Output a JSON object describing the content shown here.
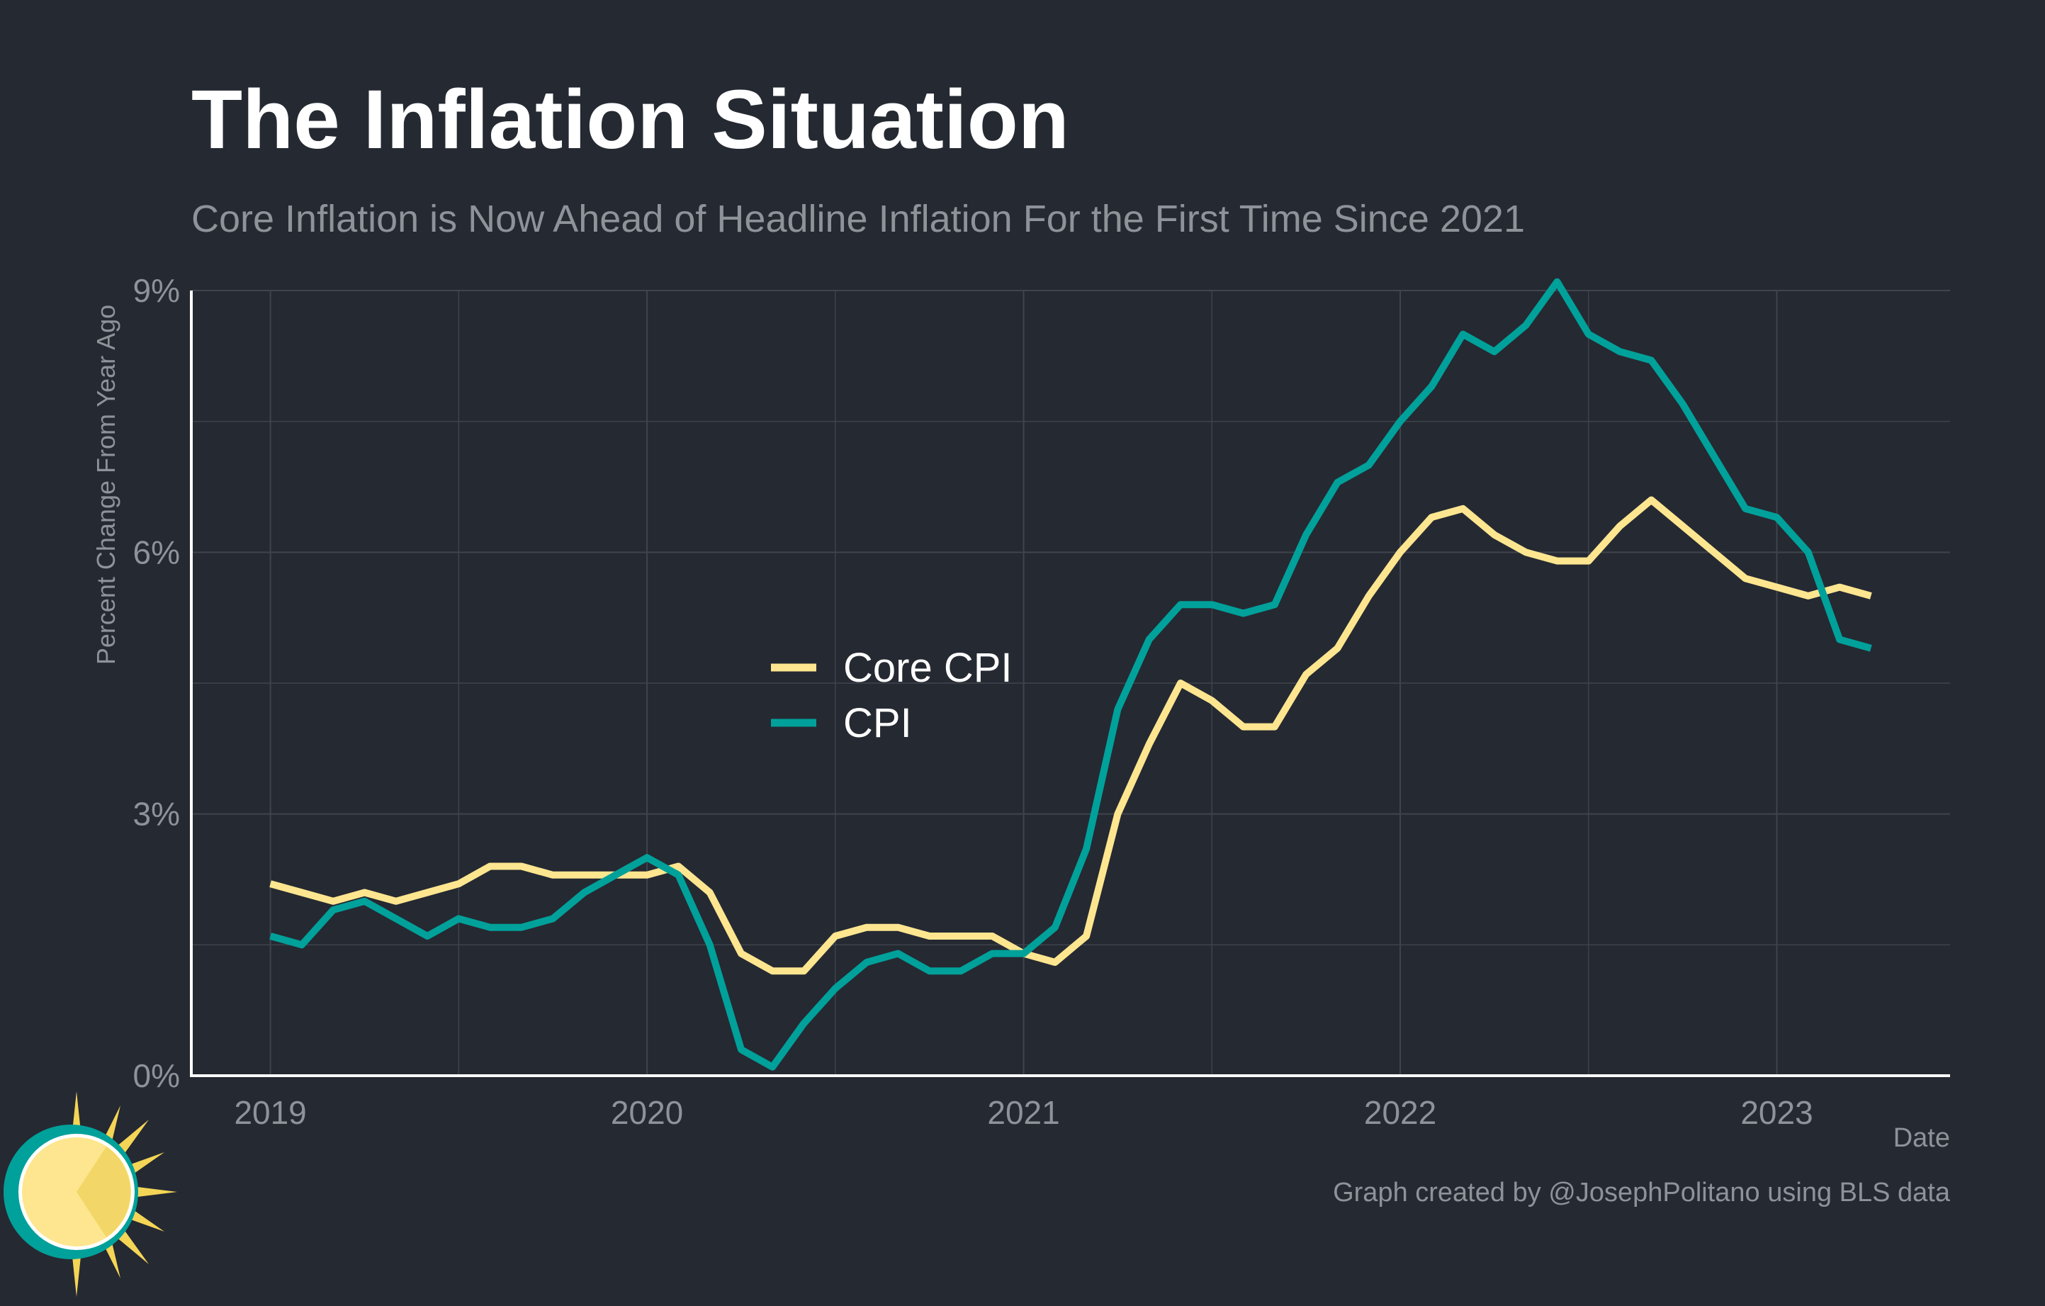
{
  "chart_data": {
    "type": "line",
    "title": "The Inflation Situation",
    "subtitle": "Core Inflation is Now Ahead of Headline Inflation For the First Time Since 2021",
    "xlabel": "Date",
    "ylabel": "Percent Change From Year Ago",
    "caption": "Graph created by @JosephPolitano using BLS data",
    "xlim": [
      2018.79,
      2023.46
    ],
    "ylim": [
      0,
      9
    ],
    "x_ticks": [
      {
        "value": 2019,
        "label": "2019"
      },
      {
        "value": 2020,
        "label": "2020"
      },
      {
        "value": 2021,
        "label": "2021"
      },
      {
        "value": 2022,
        "label": "2022"
      },
      {
        "value": 2023,
        "label": "2023"
      }
    ],
    "y_ticks": [
      {
        "value": 0,
        "label": "0%"
      },
      {
        "value": 3,
        "label": "3%"
      },
      {
        "value": 6,
        "label": "6%"
      },
      {
        "value": 9,
        "label": "9%"
      }
    ],
    "x_start": "2019-01",
    "x_step_months": 1,
    "legend": {
      "position": "center-left"
    },
    "series": [
      {
        "name": "Core CPI",
        "color": "#fde68f",
        "values": [
          2.2,
          2.1,
          2.0,
          2.1,
          2.0,
          2.1,
          2.2,
          2.4,
          2.4,
          2.3,
          2.3,
          2.3,
          2.3,
          2.4,
          2.1,
          1.4,
          1.2,
          1.2,
          1.6,
          1.7,
          1.7,
          1.6,
          1.6,
          1.6,
          1.4,
          1.3,
          1.6,
          3.0,
          3.8,
          4.5,
          4.3,
          4.0,
          4.0,
          4.6,
          4.9,
          5.5,
          6.0,
          6.4,
          6.5,
          6.2,
          6.0,
          5.9,
          5.9,
          6.3,
          6.6,
          6.3,
          6.0,
          5.7,
          5.6,
          5.5,
          5.6,
          5.5
        ]
      },
      {
        "name": "CPI",
        "color": "#00a19a",
        "values": [
          1.6,
          1.5,
          1.9,
          2.0,
          1.8,
          1.6,
          1.8,
          1.7,
          1.7,
          1.8,
          2.1,
          2.3,
          2.5,
          2.3,
          1.5,
          0.3,
          0.1,
          0.6,
          1.0,
          1.3,
          1.4,
          1.2,
          1.2,
          1.4,
          1.4,
          1.7,
          2.6,
          4.2,
          5.0,
          5.4,
          5.4,
          5.3,
          5.4,
          6.2,
          6.8,
          7.0,
          7.5,
          7.9,
          8.5,
          8.3,
          8.6,
          9.1,
          8.5,
          8.3,
          8.2,
          7.7,
          7.1,
          6.5,
          6.4,
          6.0,
          5.0,
          4.9
        ]
      }
    ]
  }
}
